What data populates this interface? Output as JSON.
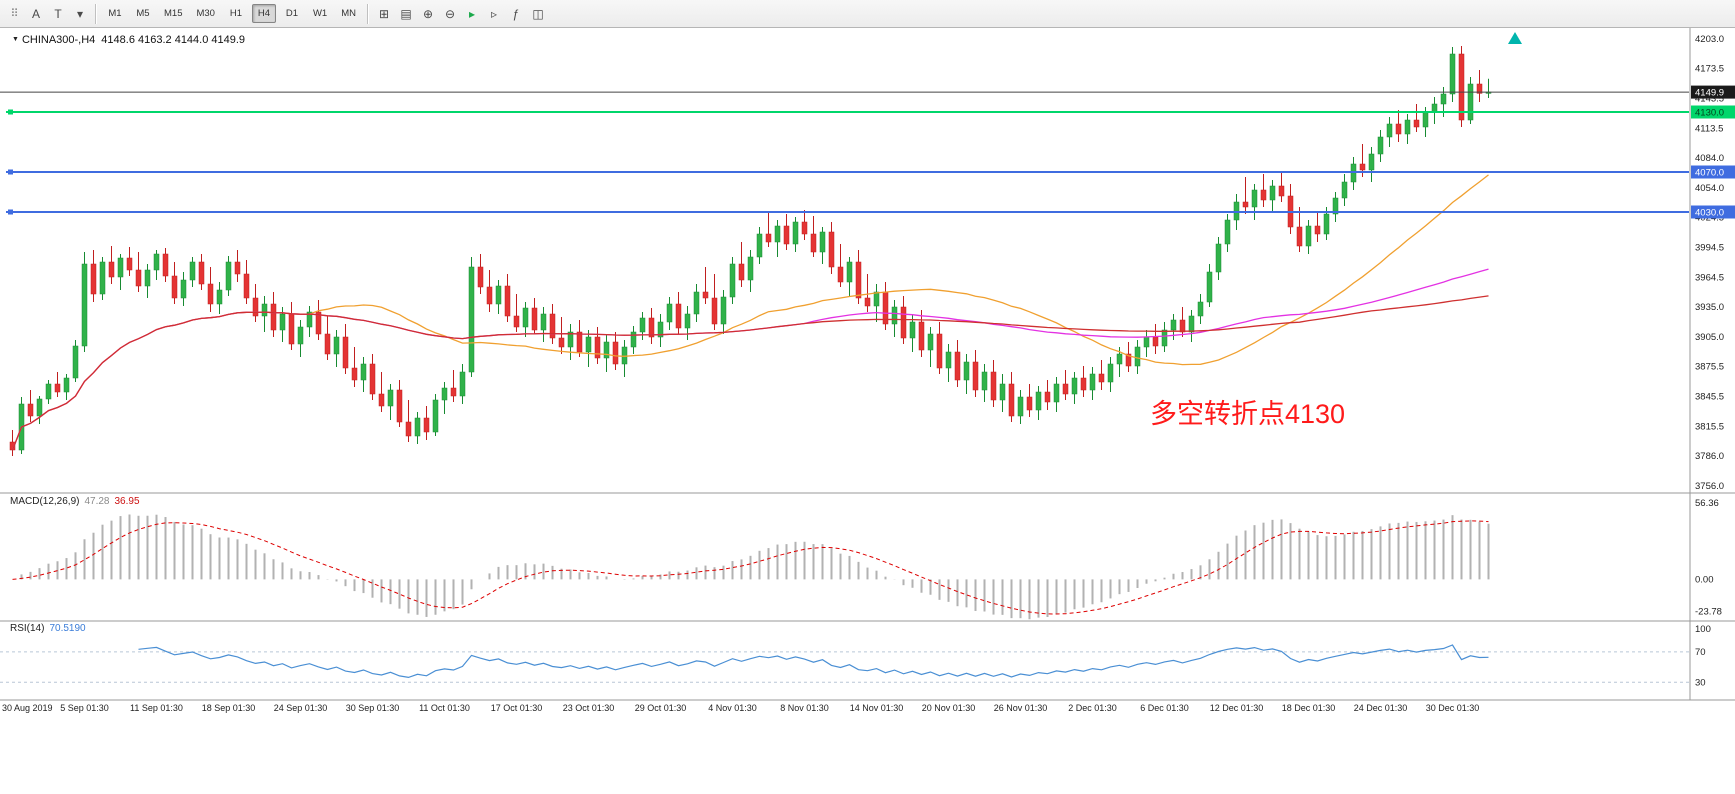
{
  "toolbar": {
    "left_icons": [
      {
        "name": "window-grip-icon",
        "glyph": "⠿"
      },
      {
        "name": "text-tool-icon",
        "glyph": "A"
      },
      {
        "name": "objects-tool-icon",
        "glyph": "T"
      },
      {
        "name": "draw-tool-dropdown-icon",
        "glyph": "▾"
      }
    ],
    "timeframes": [
      "M1",
      "M5",
      "M15",
      "M30",
      "H1",
      "H4",
      "D1",
      "W1",
      "MN"
    ],
    "selected_timeframe": "H4",
    "right_icons": [
      {
        "name": "new-chart-icon",
        "glyph": "⊞"
      },
      {
        "name": "profiles-icon",
        "glyph": "▤"
      },
      {
        "name": "zoom-in-icon",
        "glyph": "⊕"
      },
      {
        "name": "zoom-out-icon",
        "glyph": "⊖"
      },
      {
        "name": "auto-scroll-icon",
        "glyph": "▸",
        "color": "#1ca94c"
      },
      {
        "name": "chart-shift-icon",
        "glyph": "▹"
      },
      {
        "name": "indicators-icon",
        "glyph": "ƒ"
      },
      {
        "name": "tile-windows-icon",
        "glyph": "◫"
      }
    ]
  },
  "chart": {
    "symbol_marker": "▼",
    "symbol_label": "CHINA300-,H4",
    "ohlc_text": "4148.6 4163.2 4144.0 4149.9",
    "current_price": 4149.9,
    "current_price_label": "4149.9",
    "price_axis": [
      4203.0,
      4173.5,
      4143.5,
      4113.5,
      4084.0,
      4054.0,
      4024.5,
      3994.5,
      3964.5,
      3935.0,
      3905.0,
      3875.5,
      3845.5,
      3815.5,
      3786.0,
      3756.0
    ],
    "hlines": [
      {
        "value": 4130.0,
        "label": "4130.0",
        "color": "#00d66b",
        "width": 2,
        "tag_text_color": "#00451f"
      },
      {
        "value": 4070.0,
        "label": "4070.0",
        "color": "#3f6ce0",
        "width": 2,
        "tag_text_color": "#ffffff"
      },
      {
        "value": 4030.0,
        "label": "4030.0",
        "color": "#3f6ce0",
        "width": 2,
        "tag_text_color": "#ffffff"
      }
    ],
    "annotation": {
      "text": "多空转折点4130",
      "color": "#ff1a1a"
    },
    "up_color": "#30b24a",
    "up_stroke": "#188a32",
    "down_color": "#e43434",
    "down_stroke": "#c01f1f",
    "bid_line_color": "#444444",
    "moving_averages": [
      {
        "period": 34,
        "color": "#f0a030"
      },
      {
        "period": 89,
        "color": "#e332e3"
      },
      {
        "period": 144,
        "color": "#cf3030"
      }
    ],
    "candles": [
      [
        3800,
        3812,
        3786,
        3792
      ],
      [
        3792,
        3845,
        3788,
        3838
      ],
      [
        3838,
        3852,
        3820,
        3826
      ],
      [
        3826,
        3846,
        3818,
        3843
      ],
      [
        3843,
        3862,
        3838,
        3858
      ],
      [
        3858,
        3870,
        3845,
        3850
      ],
      [
        3850,
        3868,
        3842,
        3864
      ],
      [
        3864,
        3902,
        3860,
        3896
      ],
      [
        3896,
        3990,
        3890,
        3978
      ],
      [
        3978,
        3992,
        3940,
        3948
      ],
      [
        3948,
        3985,
        3942,
        3980
      ],
      [
        3980,
        3996,
        3958,
        3965
      ],
      [
        3965,
        3988,
        3952,
        3984
      ],
      [
        3984,
        3995,
        3966,
        3972
      ],
      [
        3972,
        3990,
        3950,
        3956
      ],
      [
        3956,
        3978,
        3944,
        3972
      ],
      [
        3972,
        3992,
        3962,
        3988
      ],
      [
        3988,
        3994,
        3960,
        3966
      ],
      [
        3966,
        3980,
        3938,
        3944
      ],
      [
        3944,
        3970,
        3936,
        3962
      ],
      [
        3962,
        3985,
        3955,
        3980
      ],
      [
        3980,
        3988,
        3952,
        3958
      ],
      [
        3958,
        3975,
        3930,
        3938
      ],
      [
        3938,
        3960,
        3928,
        3952
      ],
      [
        3952,
        3986,
        3946,
        3980
      ],
      [
        3980,
        3992,
        3960,
        3968
      ],
      [
        3968,
        3982,
        3938,
        3944
      ],
      [
        3944,
        3958,
        3920,
        3926
      ],
      [
        3926,
        3946,
        3910,
        3938
      ],
      [
        3938,
        3950,
        3905,
        3912
      ],
      [
        3912,
        3935,
        3900,
        3928
      ],
      [
        3928,
        3940,
        3892,
        3898
      ],
      [
        3898,
        3922,
        3885,
        3915
      ],
      [
        3915,
        3936,
        3905,
        3930
      ],
      [
        3930,
        3942,
        3902,
        3908
      ],
      [
        3908,
        3926,
        3882,
        3888
      ],
      [
        3888,
        3912,
        3875,
        3905
      ],
      [
        3905,
        3918,
        3868,
        3874
      ],
      [
        3874,
        3895,
        3855,
        3862
      ],
      [
        3862,
        3885,
        3850,
        3878
      ],
      [
        3878,
        3888,
        3842,
        3848
      ],
      [
        3848,
        3870,
        3830,
        3836
      ],
      [
        3836,
        3858,
        3822,
        3852
      ],
      [
        3852,
        3862,
        3815,
        3820
      ],
      [
        3820,
        3842,
        3800,
        3806
      ],
      [
        3806,
        3830,
        3798,
        3824
      ],
      [
        3824,
        3836,
        3802,
        3810
      ],
      [
        3810,
        3848,
        3806,
        3842
      ],
      [
        3842,
        3860,
        3828,
        3854
      ],
      [
        3854,
        3872,
        3840,
        3846
      ],
      [
        3846,
        3878,
        3838,
        3870
      ],
      [
        3870,
        3985,
        3865,
        3975
      ],
      [
        3975,
        3988,
        3948,
        3955
      ],
      [
        3955,
        3972,
        3930,
        3938
      ],
      [
        3938,
        3962,
        3928,
        3956
      ],
      [
        3956,
        3968,
        3920,
        3926
      ],
      [
        3926,
        3948,
        3910,
        3915
      ],
      [
        3915,
        3940,
        3905,
        3934
      ],
      [
        3934,
        3944,
        3908,
        3912
      ],
      [
        3912,
        3935,
        3900,
        3928
      ],
      [
        3928,
        3938,
        3898,
        3904
      ],
      [
        3904,
        3925,
        3888,
        3895
      ],
      [
        3895,
        3918,
        3882,
        3910
      ],
      [
        3910,
        3922,
        3885,
        3890
      ],
      [
        3890,
        3912,
        3875,
        3905
      ],
      [
        3905,
        3915,
        3878,
        3884
      ],
      [
        3884,
        3908,
        3870,
        3900
      ],
      [
        3900,
        3910,
        3872,
        3878
      ],
      [
        3878,
        3902,
        3865,
        3895
      ],
      [
        3895,
        3916,
        3888,
        3910
      ],
      [
        3910,
        3930,
        3902,
        3924
      ],
      [
        3924,
        3934,
        3898,
        3905
      ],
      [
        3905,
        3928,
        3895,
        3920
      ],
      [
        3920,
        3945,
        3912,
        3938
      ],
      [
        3938,
        3950,
        3908,
        3914
      ],
      [
        3914,
        3936,
        3902,
        3928
      ],
      [
        3928,
        3958,
        3920,
        3950
      ],
      [
        3950,
        3975,
        3938,
        3944
      ],
      [
        3944,
        3968,
        3912,
        3918
      ],
      [
        3918,
        3952,
        3908,
        3945
      ],
      [
        3945,
        3985,
        3938,
        3978
      ],
      [
        3978,
        4000,
        3955,
        3962
      ],
      [
        3962,
        3992,
        3950,
        3985
      ],
      [
        3985,
        4015,
        3978,
        4008
      ],
      [
        4008,
        4030,
        3995,
        4000
      ],
      [
        4000,
        4022,
        3985,
        4016
      ],
      [
        4016,
        4028,
        3992,
        3998
      ],
      [
        3998,
        4025,
        3990,
        4020
      ],
      [
        4020,
        4032,
        4002,
        4008
      ],
      [
        4008,
        4026,
        3985,
        3990
      ],
      [
        3990,
        4015,
        3978,
        4010
      ],
      [
        4010,
        4020,
        3968,
        3975
      ],
      [
        3975,
        3998,
        3955,
        3960
      ],
      [
        3960,
        3985,
        3945,
        3980
      ],
      [
        3980,
        3992,
        3938,
        3944
      ],
      [
        3944,
        3968,
        3930,
        3936
      ],
      [
        3936,
        3958,
        3920,
        3950
      ],
      [
        3950,
        3960,
        3912,
        3918
      ],
      [
        3918,
        3942,
        3905,
        3935
      ],
      [
        3935,
        3946,
        3898,
        3904
      ],
      [
        3904,
        3928,
        3890,
        3920
      ],
      [
        3920,
        3932,
        3885,
        3892
      ],
      [
        3892,
        3915,
        3875,
        3908
      ],
      [
        3908,
        3920,
        3868,
        3874
      ],
      [
        3874,
        3898,
        3860,
        3890
      ],
      [
        3890,
        3902,
        3855,
        3862
      ],
      [
        3862,
        3888,
        3848,
        3880
      ],
      [
        3880,
        3892,
        3845,
        3852
      ],
      [
        3852,
        3878,
        3840,
        3870
      ],
      [
        3870,
        3882,
        3835,
        3842
      ],
      [
        3842,
        3868,
        3830,
        3858
      ],
      [
        3858,
        3870,
        3820,
        3826
      ],
      [
        3826,
        3852,
        3818,
        3845
      ],
      [
        3845,
        3858,
        3825,
        3832
      ],
      [
        3832,
        3856,
        3822,
        3850
      ],
      [
        3850,
        3862,
        3832,
        3840
      ],
      [
        3840,
        3865,
        3830,
        3858
      ],
      [
        3858,
        3872,
        3842,
        3848
      ],
      [
        3848,
        3870,
        3838,
        3864
      ],
      [
        3864,
        3876,
        3845,
        3852
      ],
      [
        3852,
        3875,
        3842,
        3868
      ],
      [
        3868,
        3882,
        3852,
        3860
      ],
      [
        3860,
        3885,
        3850,
        3878
      ],
      [
        3878,
        3895,
        3865,
        3888
      ],
      [
        3888,
        3900,
        3870,
        3876
      ],
      [
        3876,
        3902,
        3868,
        3895
      ],
      [
        3895,
        3912,
        3885,
        3905
      ],
      [
        3905,
        3918,
        3888,
        3896
      ],
      [
        3896,
        3920,
        3890,
        3912
      ],
      [
        3912,
        3928,
        3902,
        3922
      ],
      [
        3922,
        3935,
        3905,
        3910
      ],
      [
        3910,
        3932,
        3900,
        3926
      ],
      [
        3926,
        3948,
        3918,
        3940
      ],
      [
        3940,
        3978,
        3935,
        3970
      ],
      [
        3970,
        4005,
        3962,
        3998
      ],
      [
        3998,
        4028,
        3990,
        4022
      ],
      [
        4022,
        4048,
        4012,
        4040
      ],
      [
        4040,
        4065,
        4028,
        4035
      ],
      [
        4035,
        4058,
        4022,
        4052
      ],
      [
        4052,
        4068,
        4035,
        4042
      ],
      [
        4042,
        4062,
        4030,
        4056
      ],
      [
        4056,
        4070,
        4040,
        4046
      ],
      [
        4046,
        4058,
        4008,
        4015
      ],
      [
        4015,
        4035,
        3990,
        3996
      ],
      [
        3996,
        4022,
        3988,
        4016
      ],
      [
        4016,
        4030,
        4000,
        4008
      ],
      [
        4008,
        4035,
        4002,
        4028
      ],
      [
        4028,
        4050,
        4020,
        4044
      ],
      [
        4044,
        4068,
        4036,
        4060
      ],
      [
        4060,
        4085,
        4052,
        4078
      ],
      [
        4078,
        4098,
        4065,
        4072
      ],
      [
        4072,
        4095,
        4060,
        4088
      ],
      [
        4088,
        4112,
        4080,
        4105
      ],
      [
        4105,
        4125,
        4095,
        4118
      ],
      [
        4118,
        4132,
        4100,
        4108
      ],
      [
        4108,
        4128,
        4098,
        4122
      ],
      [
        4122,
        4138,
        4110,
        4115
      ],
      [
        4115,
        4135,
        4105,
        4130
      ],
      [
        4130,
        4145,
        4118,
        4138
      ],
      [
        4138,
        4155,
        4125,
        4148
      ],
      [
        4148,
        4195,
        4140,
        4188
      ],
      [
        4188,
        4196,
        4115,
        4122
      ],
      [
        4122,
        4165,
        4118,
        4158
      ],
      [
        4158,
        4172,
        4140,
        4148.6
      ],
      [
        4148.6,
        4163.2,
        4144,
        4149.9
      ]
    ]
  },
  "macd": {
    "name": "MACD(12,26,9)",
    "value_main": "47.28",
    "value_signal": "36.95",
    "fast": 12,
    "slow": 26,
    "signal_period": 9,
    "axis": [
      {
        "label": "56.36",
        "value": 56.36
      },
      {
        "label": "0.00",
        "value": 0
      },
      {
        "label": "-23.78",
        "value": -23.78
      }
    ],
    "histogram_color": "#b2b2b2",
    "signal_color": "#dd0000"
  },
  "rsi": {
    "name": "RSI(14)",
    "value": "70.5190",
    "period": 14,
    "axis": [
      {
        "label": "100",
        "value": 100
      },
      {
        "label": "70",
        "value": 70
      },
      {
        "label": "30",
        "value": 30
      }
    ],
    "levels": [
      70,
      30
    ],
    "line_color": "#4a8fd4",
    "level_color": "#b9c6d6"
  },
  "time_axis": [
    "30 Aug 2019",
    "5 Sep 01:30",
    "11 Sep 01:30",
    "18 Sep 01:30",
    "24 Sep 01:30",
    "30 Sep 01:30",
    "11 Oct 01:30",
    "17 Oct 01:30",
    "23 Oct 01:30",
    "29 Oct 01:30",
    "4 Nov 01:30",
    "8 Nov 01:30",
    "14 Nov 01:30",
    "20 Nov 01:30",
    "26 Nov 01:30",
    "2 Dec 01:30",
    "6 Dec 01:30",
    "12 Dec 01:30",
    "18 Dec 01:30",
    "24 Dec 01:30",
    "30 Dec 01:30"
  ]
}
